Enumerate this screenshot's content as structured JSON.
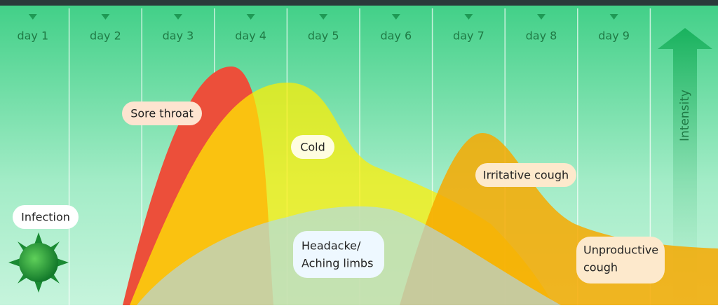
{
  "days": [
    "day 1",
    "day 2",
    "day 3",
    "day 4",
    "day 5",
    "day 6",
    "day 7",
    "day 8",
    "day 9"
  ],
  "axis_label": "Intensity",
  "labels": {
    "infection": "Infection",
    "sore_throat": "Sore throat",
    "cold": "Cold",
    "irritative_cough": "Irritative cough",
    "headache": [
      "Headacke/",
      "Aching limbs"
    ],
    "unproductive_cough": [
      "Unproductive",
      "cough"
    ]
  }
}
